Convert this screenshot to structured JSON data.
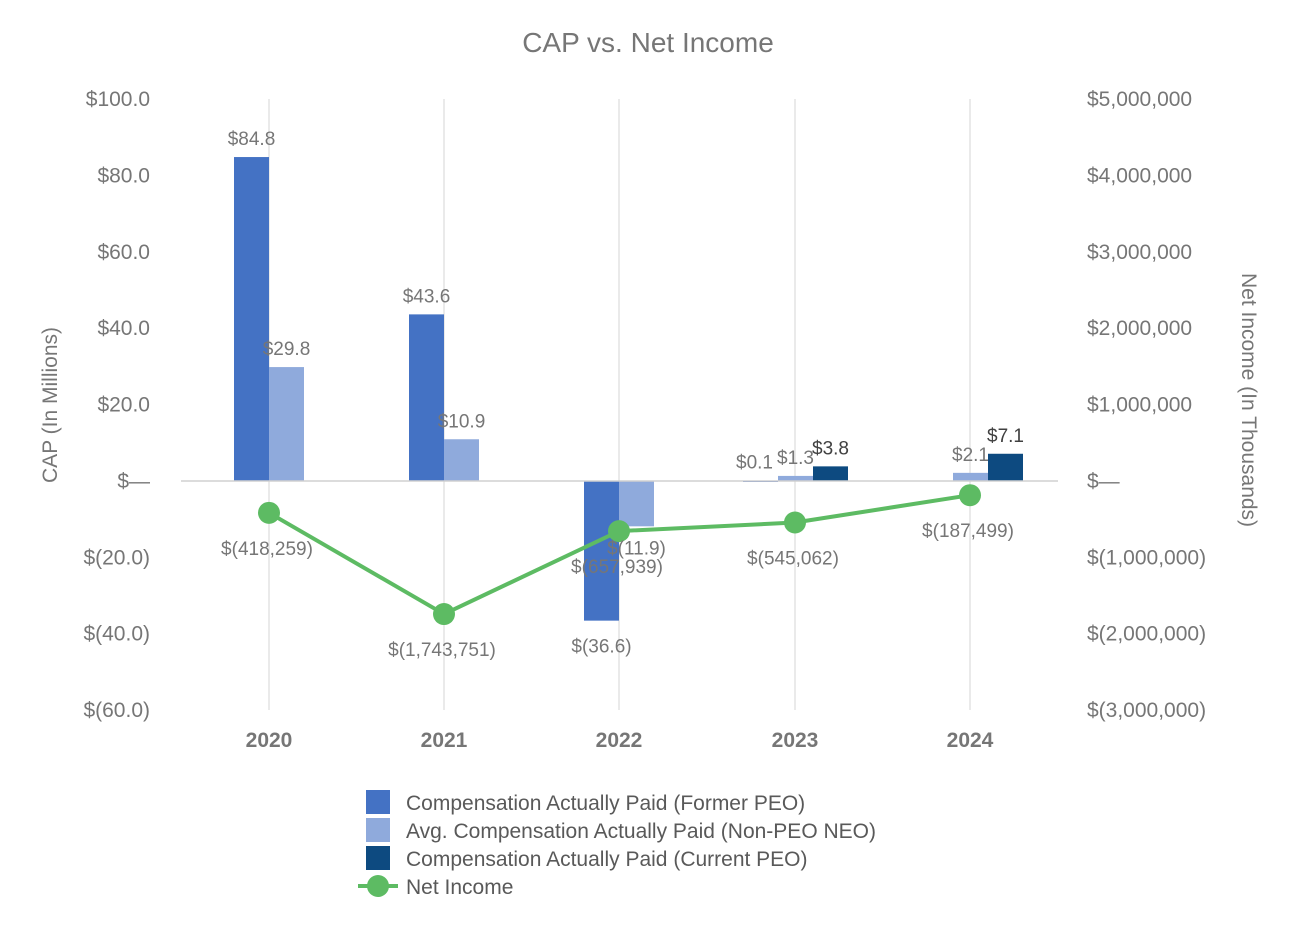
{
  "chart_data": {
    "type": "bar",
    "title": "CAP vs. Net Income",
    "categories": [
      "2020",
      "2021",
      "2022",
      "2023",
      "2024"
    ],
    "y_left": {
      "label": "CAP (In Millions)",
      "range": [
        -60,
        100
      ],
      "ticks": [
        100,
        80,
        60,
        40,
        20,
        0,
        -20,
        -40,
        -60
      ],
      "tick_labels": [
        "$100.0",
        "$80.0",
        "$60.0",
        "$40.0",
        "$20.0",
        "$—",
        "$(20.0)",
        "$(40.0)",
        "$(60.0)"
      ]
    },
    "y_right": {
      "label": "Net Income (In Thousands)",
      "range": [
        -3000000,
        5000000
      ],
      "ticks": [
        5000000,
        4000000,
        3000000,
        2000000,
        1000000,
        0,
        -1000000,
        -2000000,
        -3000000
      ],
      "tick_labels": [
        "$5,000,000",
        "$4,000,000",
        "$3,000,000",
        "$2,000,000",
        "$1,000,000",
        "$—",
        "$(1,000,000)",
        "$(2,000,000)",
        "$(3,000,000)"
      ]
    },
    "grid": "vertical",
    "legend_position": "bottom",
    "series": [
      {
        "name": "Compensation Actually Paid (Former PEO)",
        "type": "bar",
        "axis": "left",
        "color": "#4472C4",
        "values": [
          84.8,
          43.6,
          -36.6,
          0.1,
          null
        ],
        "labels": [
          "$84.8",
          "$43.6",
          "$(36.6)",
          "$0.1",
          ""
        ]
      },
      {
        "name": "Avg. Compensation Actually Paid (Non-PEO NEO)",
        "type": "bar",
        "axis": "left",
        "color": "#8FAADC",
        "values": [
          29.8,
          10.9,
          -11.9,
          1.3,
          2.1
        ],
        "labels": [
          "$29.8",
          "$10.9",
          "$(11.9)",
          "$1.3",
          "$2.1"
        ]
      },
      {
        "name": "Compensation Actually Paid (Current PEO)",
        "type": "bar",
        "axis": "left",
        "color": "#0D4A80",
        "values": [
          null,
          null,
          null,
          3.8,
          7.1
        ],
        "labels": [
          "",
          "",
          "",
          "$3.8",
          "$7.1"
        ]
      },
      {
        "name": "Net Income",
        "type": "line",
        "axis": "right",
        "color": "#5DBB63",
        "values": [
          -418259,
          -1743751,
          -657939,
          -545062,
          -187499
        ],
        "labels": [
          "$(418,259)",
          "$(1,743,751)",
          "$(657,939)",
          "$(545,062)",
          "$(187,499)"
        ]
      }
    ]
  }
}
